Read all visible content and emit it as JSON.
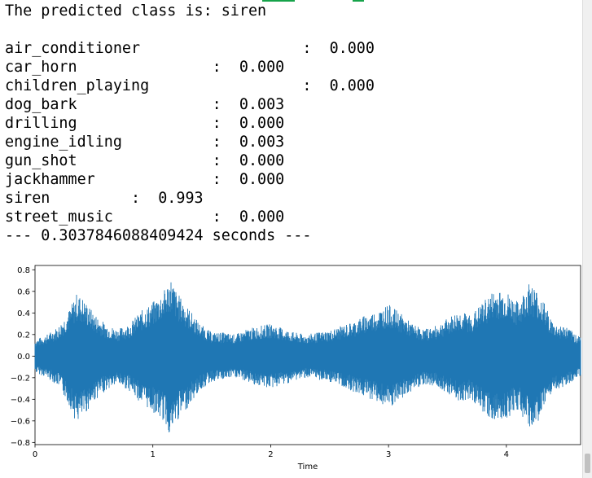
{
  "output": {
    "prediction_line": "The predicted class is: siren",
    "class_lines": [
      "air_conditioner                  :  0.000",
      "car_horn               :  0.000",
      "children_playing                 :  0.000",
      "dog_bark               :  0.003",
      "drilling               :  0.000",
      "engine_idling          :  0.003",
      "gun_shot               :  0.000",
      "jackhammer             :  0.000",
      "siren         :  0.993",
      "street_music           :  0.000"
    ],
    "timing_line": "--- 0.3037846088409424 seconds ---"
  },
  "chart_data": {
    "type": "area",
    "title": "",
    "xlabel": "Time",
    "ylabel": "",
    "xlim": [
      0,
      4.63
    ],
    "ylim": [
      -0.82,
      0.84
    ],
    "xticks": [
      0,
      1,
      2,
      3,
      4
    ],
    "yticks": [
      0.8,
      0.6,
      0.4,
      0.2,
      0.0,
      -0.2,
      -0.4,
      -0.6,
      -0.8
    ],
    "ytick_labels": [
      "0.8",
      "0.6",
      "0.4",
      "0.2",
      "0.0",
      "−0.2",
      "−0.4",
      "−0.6",
      "−0.8"
    ],
    "grid": false,
    "color": "#1f77b4",
    "series": [
      {
        "x": [
          0,
          0.1,
          0.2,
          0.3,
          0.35,
          0.4,
          0.5,
          0.6,
          0.7,
          0.8,
          0.9,
          1.0,
          1.1,
          1.15,
          1.2,
          1.3,
          1.4,
          1.5,
          1.6,
          1.7,
          1.8,
          1.9,
          2.0,
          2.1,
          2.2,
          2.3,
          2.4,
          2.5,
          2.6,
          2.7,
          2.8,
          2.9,
          3.0,
          3.1,
          3.2,
          3.3,
          3.4,
          3.5,
          3.6,
          3.7,
          3.8,
          3.9,
          4.0,
          4.1,
          4.2,
          4.3,
          4.4,
          4.5,
          4.6
        ],
        "upper": [
          0.15,
          0.2,
          0.28,
          0.45,
          0.58,
          0.55,
          0.4,
          0.3,
          0.25,
          0.3,
          0.42,
          0.5,
          0.62,
          0.74,
          0.6,
          0.45,
          0.3,
          0.22,
          0.22,
          0.2,
          0.25,
          0.28,
          0.3,
          0.26,
          0.22,
          0.2,
          0.22,
          0.24,
          0.28,
          0.32,
          0.38,
          0.42,
          0.48,
          0.4,
          0.3,
          0.25,
          0.28,
          0.35,
          0.42,
          0.38,
          0.5,
          0.62,
          0.6,
          0.5,
          0.7,
          0.55,
          0.3,
          0.28,
          0.2
        ],
        "lower": [
          -0.15,
          -0.2,
          -0.28,
          -0.48,
          -0.62,
          -0.58,
          -0.42,
          -0.32,
          -0.26,
          -0.32,
          -0.44,
          -0.52,
          -0.62,
          -0.75,
          -0.62,
          -0.47,
          -0.32,
          -0.24,
          -0.22,
          -0.2,
          -0.24,
          -0.28,
          -0.3,
          -0.27,
          -0.23,
          -0.2,
          -0.22,
          -0.24,
          -0.28,
          -0.33,
          -0.38,
          -0.42,
          -0.5,
          -0.42,
          -0.32,
          -0.26,
          -0.28,
          -0.34,
          -0.42,
          -0.4,
          -0.52,
          -0.62,
          -0.58,
          -0.5,
          -0.69,
          -0.56,
          -0.32,
          -0.28,
          -0.2
        ]
      }
    ]
  }
}
